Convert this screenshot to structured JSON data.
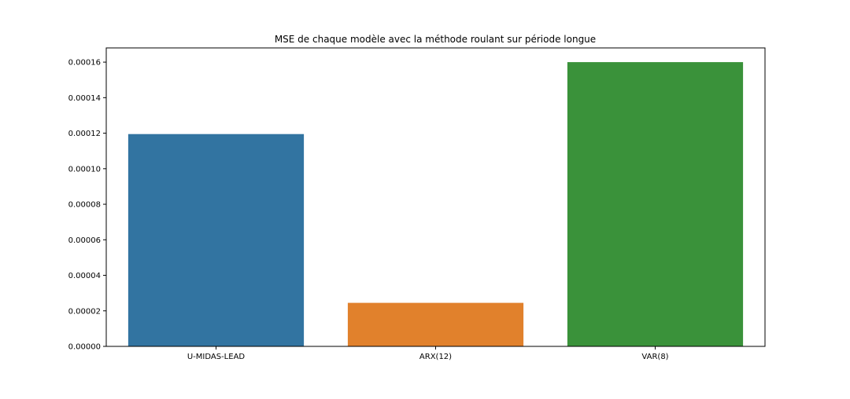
{
  "chart_data": {
    "type": "bar",
    "title": "MSE de chaque modèle avec la méthode roulant sur période longue",
    "xlabel": "",
    "ylabel": "",
    "categories": [
      "U-MIDAS-LEAD",
      "ARX(12)",
      "VAR(8)"
    ],
    "values": [
      0.0001195,
      2.45e-05,
      0.00016
    ],
    "colors": [
      "#3274a1",
      "#e1812c",
      "#3a923a"
    ],
    "ylim": [
      0,
      0.000168
    ],
    "yticks": [
      {
        "value": 0,
        "label": "0.00000"
      },
      {
        "value": 2e-05,
        "label": "0.00002"
      },
      {
        "value": 4e-05,
        "label": "0.00004"
      },
      {
        "value": 6e-05,
        "label": "0.00006"
      },
      {
        "value": 8e-05,
        "label": "0.00008"
      },
      {
        "value": 0.0001,
        "label": "0.00010"
      },
      {
        "value": 0.00012,
        "label": "0.00012"
      },
      {
        "value": 0.00014,
        "label": "0.00014"
      },
      {
        "value": 0.00016,
        "label": "0.00016"
      }
    ],
    "grid": false,
    "legend": false
  }
}
